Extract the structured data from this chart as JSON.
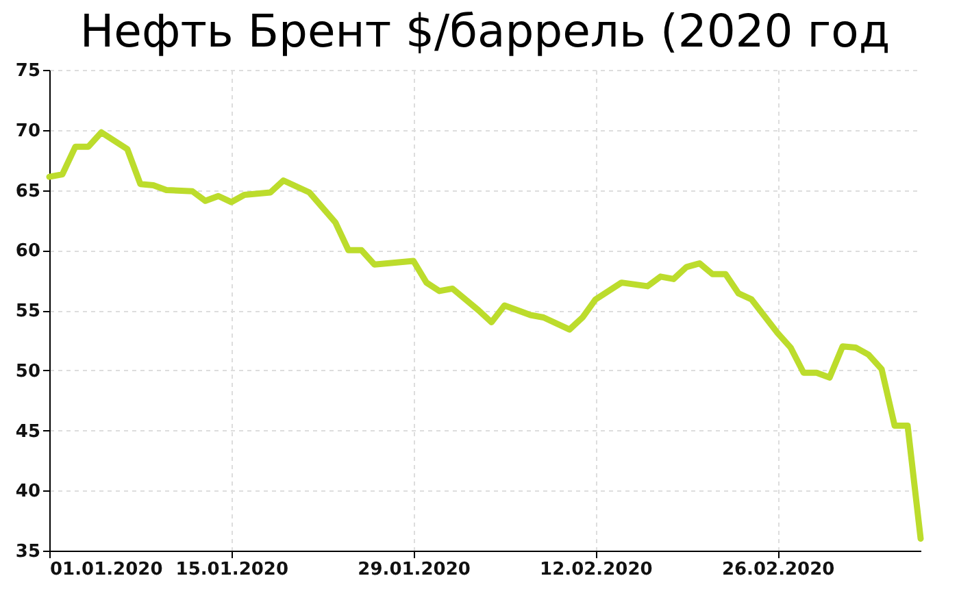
{
  "chart_data": {
    "type": "line",
    "title": "Нефть Брент  $/баррель (2020  год",
    "x": [
      "2020-01-01",
      "2020-01-02",
      "2020-01-03",
      "2020-01-04",
      "2020-01-05",
      "2020-01-07",
      "2020-01-08",
      "2020-01-09",
      "2020-01-10",
      "2020-01-12",
      "2020-01-13",
      "2020-01-14",
      "2020-01-15",
      "2020-01-16",
      "2020-01-18",
      "2020-01-19",
      "2020-01-21",
      "2020-01-23",
      "2020-01-24",
      "2020-01-25",
      "2020-01-26",
      "2020-01-28",
      "2020-01-29",
      "2020-01-30",
      "2020-01-31",
      "2020-02-01",
      "2020-02-03",
      "2020-02-04",
      "2020-02-05",
      "2020-02-07",
      "2020-02-08",
      "2020-02-10",
      "2020-02-11",
      "2020-02-12",
      "2020-02-14",
      "2020-02-16",
      "2020-02-17",
      "2020-02-18",
      "2020-02-19",
      "2020-02-20",
      "2020-02-21",
      "2020-02-22",
      "2020-02-23",
      "2020-02-24",
      "2020-02-26",
      "2020-02-27",
      "2020-02-28",
      "2020-02-29",
      "2020-03-01",
      "2020-03-02",
      "2020-03-03",
      "2020-03-04",
      "2020-03-05",
      "2020-03-06",
      "2020-03-07",
      "2020-03-08"
    ],
    "series": [
      {
        "color": "#bcdc2c",
        "values": [
          66.1,
          66.3,
          68.6,
          68.6,
          69.8,
          68.4,
          65.5,
          65.4,
          65.0,
          64.9,
          64.1,
          64.5,
          64.0,
          64.6,
          64.8,
          65.8,
          64.8,
          62.3,
          60.0,
          60.0,
          58.8,
          59.0,
          59.1,
          57.3,
          56.6,
          56.8,
          55.0,
          54.0,
          55.4,
          54.6,
          54.4,
          53.4,
          54.4,
          55.9,
          57.3,
          57.0,
          57.8,
          57.6,
          58.6,
          58.9,
          58.0,
          58.0,
          56.4,
          55.9,
          53.1,
          51.9,
          49.8,
          49.8,
          49.4,
          52.0,
          51.9,
          51.3,
          50.1,
          45.4,
          45.4,
          36.0
        ]
      }
    ],
    "xlim": [
      "2020-01-01",
      "2020-03-08"
    ],
    "xticks": [
      {
        "value": "2020-01-01",
        "label": "01.01.2020"
      },
      {
        "value": "2020-01-15",
        "label": "15.01.2020"
      },
      {
        "value": "2020-01-29",
        "label": "29.01.2020"
      },
      {
        "value": "2020-02-12",
        "label": "12.02.2020"
      },
      {
        "value": "2020-02-26",
        "label": "26.02.2020"
      }
    ],
    "ylim": [
      35,
      75
    ],
    "yticks": [
      35,
      40,
      45,
      50,
      55,
      60,
      65,
      70,
      75
    ],
    "grid": true,
    "line_style": "solid",
    "marker": "none"
  }
}
